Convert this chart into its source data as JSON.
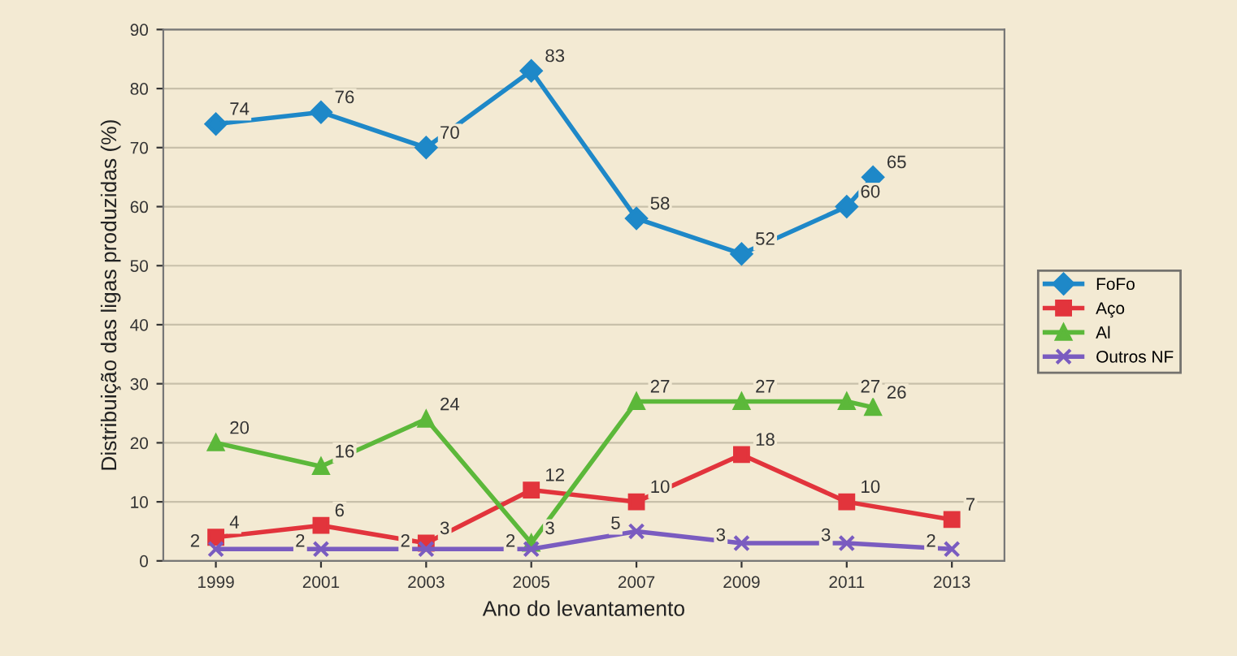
{
  "chart_data": {
    "type": "line",
    "xlabel": "Ano do levantamento",
    "ylabel": "Distribuição das ligas produzidas (%)",
    "xlim": [
      1998,
      2014
    ],
    "xticks": [
      1999,
      2001,
      2003,
      2005,
      2007,
      2009,
      2011,
      2013
    ],
    "ylim": [
      0,
      90
    ],
    "yticks": [
      0,
      10,
      20,
      30,
      40,
      50,
      60,
      70,
      80,
      90
    ],
    "grid": "y",
    "legend": "right",
    "data_labels": true,
    "line_style": "solid",
    "series": [
      {
        "name": "FoFo",
        "color": "#1e88c8",
        "marker": "diamond",
        "x": [
          1999,
          2001,
          2003,
          2005,
          2007,
          2009,
          2011,
          2011.5
        ],
        "values": [
          74,
          76,
          70,
          83,
          58,
          52,
          60,
          65
        ]
      },
      {
        "name": "Aço",
        "color": "#e2343c",
        "marker": "square",
        "x": [
          1999,
          2001,
          2003,
          2005,
          2007,
          2009,
          2011,
          2013
        ],
        "values": [
          4,
          6,
          3,
          12,
          10,
          18,
          10,
          7
        ]
      },
      {
        "name": "Al",
        "color": "#5cb83a",
        "marker": "triangle",
        "x": [
          1999,
          2001,
          2003,
          2005,
          2007,
          2009,
          2011,
          2011.5
        ],
        "values": [
          20,
          16,
          24,
          3,
          27,
          27,
          27,
          26
        ]
      },
      {
        "name": "Outros NF",
        "color": "#7a5cc0",
        "marker": "cross",
        "x": [
          1999,
          2001,
          2003,
          2005,
          2007,
          2009,
          2011,
          2013
        ],
        "values": [
          2,
          2,
          2,
          2,
          5,
          3,
          3,
          2
        ]
      }
    ]
  }
}
